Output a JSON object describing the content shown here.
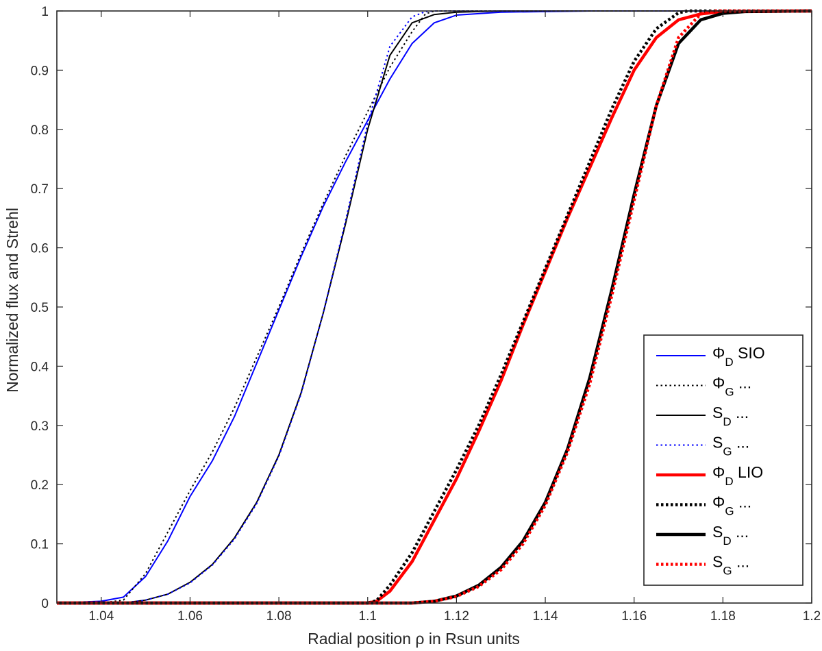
{
  "chart_data": {
    "type": "line",
    "title": "",
    "xlabel": "Radial position ρ in Rsun units",
    "ylabel": "Normalized flux and Strehl",
    "xlim": [
      1.03,
      1.2
    ],
    "ylim": [
      0,
      1
    ],
    "xticks": [
      1.04,
      1.06,
      1.08,
      1.1,
      1.12,
      1.14,
      1.16,
      1.18,
      1.2
    ],
    "xtick_labels": [
      "1.04",
      "1.06",
      "1.08",
      "1.1",
      "1.12",
      "1.14",
      "1.16",
      "1.18",
      "1.2"
    ],
    "yticks": [
      0,
      0.1,
      0.2,
      0.3,
      0.4,
      0.5,
      0.6,
      0.7,
      0.8,
      0.9,
      1
    ],
    "ytick_labels": [
      "0",
      "0.1",
      "0.2",
      "0.3",
      "0.4",
      "0.5",
      "0.6",
      "0.7",
      "0.8",
      "0.9",
      "1"
    ],
    "grid": false,
    "legend_position": "bottom-right",
    "series": [
      {
        "name": "ΦD SIO",
        "color": "#0000ff",
        "style": "solid",
        "weight": "thin",
        "x": [
          1.03,
          1.04,
          1.045,
          1.05,
          1.055,
          1.06,
          1.065,
          1.07,
          1.075,
          1.08,
          1.085,
          1.09,
          1.095,
          1.1,
          1.105,
          1.11,
          1.115,
          1.12,
          1.13,
          1.15,
          1.2
        ],
        "y": [
          0,
          0.003,
          0.01,
          0.045,
          0.105,
          0.18,
          0.24,
          0.315,
          0.405,
          0.495,
          0.585,
          0.67,
          0.745,
          0.815,
          0.885,
          0.945,
          0.98,
          0.993,
          0.998,
          1,
          1
        ]
      },
      {
        "name": "ΦG ...",
        "color": "#000000",
        "style": "dotted",
        "weight": "thin",
        "x": [
          1.03,
          1.04,
          1.045,
          1.05,
          1.055,
          1.06,
          1.065,
          1.07,
          1.075,
          1.08,
          1.085,
          1.09,
          1.095,
          1.1,
          1.105,
          1.11,
          1.113,
          1.115,
          1.2
        ],
        "y": [
          0,
          0,
          0.005,
          0.05,
          0.12,
          0.19,
          0.255,
          0.33,
          0.415,
          0.5,
          0.59,
          0.675,
          0.755,
          0.83,
          0.905,
          0.965,
          0.995,
          1,
          1
        ]
      },
      {
        "name": "SD ...",
        "color": "#000000",
        "style": "solid",
        "weight": "thin",
        "x": [
          1.03,
          1.045,
          1.05,
          1.055,
          1.06,
          1.065,
          1.07,
          1.075,
          1.08,
          1.085,
          1.09,
          1.095,
          1.1,
          1.105,
          1.11,
          1.115,
          1.12,
          1.13,
          1.2
        ],
        "y": [
          0,
          0,
          0.005,
          0.015,
          0.035,
          0.065,
          0.11,
          0.17,
          0.25,
          0.355,
          0.49,
          0.64,
          0.8,
          0.925,
          0.98,
          0.994,
          0.998,
          1,
          1
        ]
      },
      {
        "name": "SG ...",
        "color": "#0000ff",
        "style": "dotted",
        "weight": "thin",
        "x": [
          1.03,
          1.045,
          1.05,
          1.055,
          1.06,
          1.065,
          1.07,
          1.075,
          1.08,
          1.085,
          1.09,
          1.095,
          1.1,
          1.105,
          1.11,
          1.113,
          1.115,
          1.2
        ],
        "y": [
          0,
          0,
          0.005,
          0.015,
          0.034,
          0.064,
          0.108,
          0.168,
          0.248,
          0.353,
          0.49,
          0.645,
          0.81,
          0.94,
          0.99,
          0.999,
          1,
          1
        ]
      },
      {
        "name": "ΦD LIO",
        "color": "#ff0000",
        "style": "solid",
        "weight": "thick",
        "x": [
          1.03,
          1.1,
          1.102,
          1.105,
          1.11,
          1.115,
          1.12,
          1.125,
          1.13,
          1.135,
          1.14,
          1.145,
          1.15,
          1.155,
          1.16,
          1.165,
          1.17,
          1.175,
          1.18,
          1.2
        ],
        "y": [
          0,
          0,
          0.003,
          0.02,
          0.07,
          0.14,
          0.21,
          0.29,
          0.375,
          0.47,
          0.56,
          0.65,
          0.735,
          0.82,
          0.9,
          0.955,
          0.985,
          0.995,
          0.999,
          1
        ]
      },
      {
        "name": "ΦG ...",
        "color": "#000000",
        "style": "dotted",
        "weight": "thick",
        "x": [
          1.03,
          1.1,
          1.102,
          1.105,
          1.11,
          1.115,
          1.12,
          1.125,
          1.13,
          1.135,
          1.14,
          1.145,
          1.15,
          1.155,
          1.16,
          1.165,
          1.17,
          1.172,
          1.2
        ],
        "y": [
          0,
          0,
          0.004,
          0.03,
          0.085,
          0.155,
          0.225,
          0.3,
          0.385,
          0.475,
          0.565,
          0.655,
          0.745,
          0.835,
          0.915,
          0.97,
          0.997,
          1,
          1
        ]
      },
      {
        "name": "SD ...",
        "color": "#000000",
        "style": "solid",
        "weight": "thick",
        "x": [
          1.03,
          1.11,
          1.115,
          1.12,
          1.125,
          1.13,
          1.135,
          1.14,
          1.145,
          1.15,
          1.155,
          1.16,
          1.165,
          1.17,
          1.175,
          1.18,
          1.185,
          1.2
        ],
        "y": [
          0,
          0,
          0.003,
          0.012,
          0.03,
          0.06,
          0.105,
          0.17,
          0.26,
          0.38,
          0.53,
          0.69,
          0.84,
          0.945,
          0.985,
          0.996,
          0.999,
          1
        ]
      },
      {
        "name": "SG ...",
        "color": "#ff0000",
        "style": "dotted",
        "weight": "thick",
        "x": [
          1.03,
          1.11,
          1.115,
          1.12,
          1.125,
          1.13,
          1.135,
          1.14,
          1.145,
          1.15,
          1.155,
          1.16,
          1.165,
          1.17,
          1.175,
          1.178,
          1.2
        ],
        "y": [
          0,
          0,
          0.003,
          0.011,
          0.028,
          0.056,
          0.1,
          0.165,
          0.255,
          0.37,
          0.52,
          0.68,
          0.84,
          0.955,
          0.995,
          1,
          1
        ]
      }
    ],
    "legend": [
      {
        "symbol": "Φ",
        "sub": "D",
        "suffix": " SIO",
        "color": "#0000ff",
        "style": "solid",
        "weight": "thin"
      },
      {
        "symbol": "Φ",
        "sub": "G",
        "suffix": " ...",
        "color": "#000000",
        "style": "dotted",
        "weight": "thin"
      },
      {
        "symbol": "S",
        "sub": "D",
        "suffix": " ...",
        "color": "#000000",
        "style": "solid",
        "weight": "thin"
      },
      {
        "symbol": "S",
        "sub": "G",
        "suffix": " ...",
        "color": "#0000ff",
        "style": "dotted",
        "weight": "thin"
      },
      {
        "symbol": "Φ",
        "sub": "D",
        "suffix": " LIO",
        "color": "#ff0000",
        "style": "solid",
        "weight": "thick"
      },
      {
        "symbol": "Φ",
        "sub": "G",
        "suffix": " ...",
        "color": "#000000",
        "style": "dotted",
        "weight": "thick"
      },
      {
        "symbol": "S",
        "sub": "D",
        "suffix": " ...",
        "color": "#000000",
        "style": "solid",
        "weight": "thick"
      },
      {
        "symbol": "S",
        "sub": "G",
        "suffix": " ...",
        "color": "#ff0000",
        "style": "dotted",
        "weight": "thick"
      }
    ]
  }
}
